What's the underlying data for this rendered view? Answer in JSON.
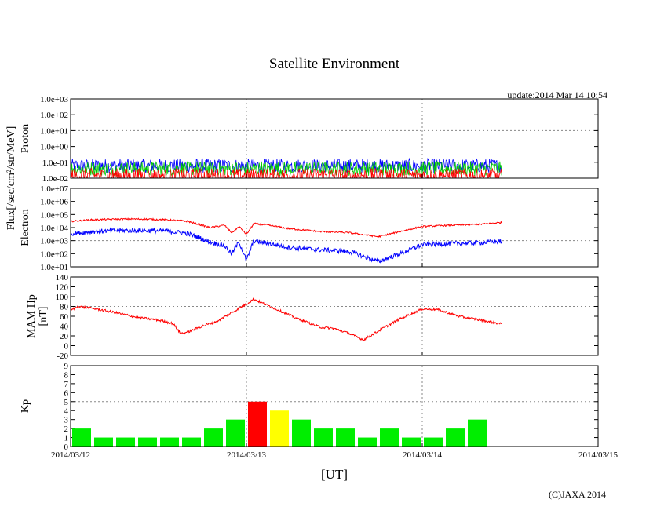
{
  "page": {
    "title": "Satellite Environment",
    "update": "update:2014 Mar 14 10:54",
    "copyright": "(C)JAXA 2014",
    "x_unit": "[UT]",
    "flux_label": "Flux[/sec/cm²/str/MeV]"
  },
  "chart_data": [
    {
      "name": "proton",
      "type": "line",
      "ylabel": "Proton",
      "yscale": "log",
      "ylim": [
        0.01,
        1000
      ],
      "yticks": [
        "1.0e-02",
        "1.0e-01",
        "1.0e+00",
        "1.0e+01",
        "1.0e+02",
        "1.0e+03"
      ],
      "grid_y_values": [
        10
      ],
      "xlim": [
        "2014-03-12T00:00",
        "2014-03-15T00:00"
      ],
      "series": [
        {
          "color": "#0000ff",
          "x": [
            "2014-03-12T00:00",
            "2014-03-12T12:00",
            "2014-03-13T00:00",
            "2014-03-13T12:00",
            "2014-03-14T00:00",
            "2014-03-14T10:54"
          ],
          "y": [
            0.06,
            0.06,
            0.06,
            0.06,
            0.06,
            0.06
          ]
        },
        {
          "color": "#00cc00",
          "x": [
            "2014-03-12T00:00",
            "2014-03-12T12:00",
            "2014-03-13T00:00",
            "2014-03-13T12:00",
            "2014-03-14T00:00",
            "2014-03-14T10:54"
          ],
          "y": [
            0.04,
            0.04,
            0.04,
            0.04,
            0.04,
            0.04
          ]
        },
        {
          "color": "#ff0000",
          "x": [
            "2014-03-12T00:00",
            "2014-03-12T12:00",
            "2014-03-13T00:00",
            "2014-03-13T12:00",
            "2014-03-14T00:00",
            "2014-03-14T10:54"
          ],
          "y": [
            0.015,
            0.015,
            0.015,
            0.015,
            0.015,
            0.015
          ]
        }
      ]
    },
    {
      "name": "electron",
      "type": "line",
      "ylabel": "Electron",
      "yscale": "log",
      "ylim": [
        10,
        10000000
      ],
      "yticks": [
        "1.0e+01",
        "1.0e+02",
        "1.0e+03",
        "1.0e+04",
        "1.0e+05",
        "1.0e+06",
        "1.0e+07"
      ],
      "grid_y_values": [
        1000
      ],
      "xlim": [
        "2014-03-12T00:00",
        "2014-03-15T00:00"
      ],
      "series": [
        {
          "color": "#ff0000",
          "x": [
            "2014-03-12T00:00",
            "2014-03-12T03:00",
            "2014-03-12T07:00",
            "2014-03-12T10:00",
            "2014-03-12T13:00",
            "2014-03-12T16:00",
            "2014-03-12T19:00",
            "2014-03-12T21:00",
            "2014-03-12T22:00",
            "2014-03-12T23:00",
            "2014-03-13T00:00",
            "2014-03-13T01:00",
            "2014-03-13T03:00",
            "2014-03-13T06:00",
            "2014-03-13T10:00",
            "2014-03-13T14:00",
            "2014-03-13T18:00",
            "2014-03-13T21:00",
            "2014-03-14T00:00",
            "2014-03-14T04:00",
            "2014-03-14T08:00",
            "2014-03-14T10:54"
          ],
          "y": [
            30000,
            40000,
            45000,
            45000,
            40000,
            30000,
            10000,
            15000,
            4000,
            12000,
            3000,
            20000,
            15000,
            8000,
            5000,
            4000,
            2000,
            5000,
            12000,
            15000,
            18000,
            25000
          ]
        },
        {
          "color": "#0000ff",
          "x": [
            "2014-03-12T00:00",
            "2014-03-12T03:00",
            "2014-03-12T07:00",
            "2014-03-12T10:00",
            "2014-03-12T13:00",
            "2014-03-12T16:00",
            "2014-03-12T19:00",
            "2014-03-12T21:00",
            "2014-03-12T22:00",
            "2014-03-12T23:00",
            "2014-03-13T00:00",
            "2014-03-13T01:00",
            "2014-03-13T03:00",
            "2014-03-13T06:00",
            "2014-03-13T10:00",
            "2014-03-13T14:00",
            "2014-03-13T18:00",
            "2014-03-13T21:00",
            "2014-03-14T00:00",
            "2014-03-14T04:00",
            "2014-03-14T08:00",
            "2014-03-14T10:54"
          ],
          "y": [
            3500,
            5000,
            6000,
            6000,
            5500,
            3500,
            800,
            400,
            100,
            800,
            30,
            1000,
            600,
            300,
            200,
            150,
            25,
            100,
            500,
            600,
            700,
            900
          ]
        }
      ]
    },
    {
      "name": "mam",
      "type": "line",
      "ylabel": "MAM Hp",
      "ylabel2": "[nT]",
      "ylim": [
        -20,
        140
      ],
      "yticks": [
        "-20",
        "0",
        "20",
        "40",
        "60",
        "80",
        "100",
        "120",
        "140"
      ],
      "grid_y_values": [
        80
      ],
      "xlim": [
        "2014-03-12T00:00",
        "2014-03-15T00:00"
      ],
      "series": [
        {
          "color": "#ff0000",
          "x": [
            "2014-03-12T00:00",
            "2014-03-12T01:00",
            "2014-03-12T03:00",
            "2014-03-12T06:00",
            "2014-03-12T09:00",
            "2014-03-12T12:00",
            "2014-03-12T14:00",
            "2014-03-12T15:00",
            "2014-03-12T16:00",
            "2014-03-12T18:00",
            "2014-03-12T20:00",
            "2014-03-13T00:00",
            "2014-03-13T01:00",
            "2014-03-13T02:00",
            "2014-03-13T04:00",
            "2014-03-13T07:00",
            "2014-03-13T10:00",
            "2014-03-13T12:00",
            "2014-03-13T14:00",
            "2014-03-13T15:00",
            "2014-03-13T16:00",
            "2014-03-13T18:00",
            "2014-03-13T21:00",
            "2014-03-14T00:00",
            "2014-03-14T02:00",
            "2014-03-14T05:00",
            "2014-03-14T08:00",
            "2014-03-14T10:54"
          ],
          "y": [
            72,
            80,
            76,
            68,
            58,
            52,
            45,
            25,
            28,
            40,
            50,
            85,
            95,
            88,
            75,
            55,
            38,
            35,
            25,
            18,
            12,
            30,
            55,
            75,
            74,
            60,
            52,
            44
          ]
        }
      ]
    },
    {
      "name": "kp",
      "type": "bar",
      "ylabel": "Kp",
      "ylim": [
        0,
        9
      ],
      "yticks": [
        "0",
        "1",
        "2",
        "3",
        "4",
        "5",
        "6",
        "7",
        "8",
        "9"
      ],
      "grid_y_values": [
        5
      ],
      "xlim": [
        "2014-03-12T00:00",
        "2014-03-15T00:00"
      ],
      "bar_hours": 3,
      "x": [
        "2014-03-12T00:00",
        "2014-03-12T03:00",
        "2014-03-12T06:00",
        "2014-03-12T09:00",
        "2014-03-12T12:00",
        "2014-03-12T15:00",
        "2014-03-12T18:00",
        "2014-03-12T21:00",
        "2014-03-13T00:00",
        "2014-03-13T03:00",
        "2014-03-13T06:00",
        "2014-03-13T09:00",
        "2014-03-13T12:00",
        "2014-03-13T15:00",
        "2014-03-13T18:00",
        "2014-03-13T21:00",
        "2014-03-14T00:00",
        "2014-03-14T03:00",
        "2014-03-14T06:00"
      ],
      "values": [
        2,
        1,
        1,
        1,
        1,
        1,
        2,
        3,
        5,
        4,
        3,
        2,
        2,
        1,
        2,
        1,
        1,
        2,
        3
      ],
      "colors": {
        "normal": "#00ee00",
        "kp4": "#ffff00",
        "kp5": "#ff0000"
      }
    }
  ],
  "x_axis": {
    "ticks": [
      "2014-03-12T00:00",
      "2014-03-13T00:00",
      "2014-03-14T00:00",
      "2014-03-15T00:00"
    ],
    "labels": [
      "2014/03/12",
      "2014/03/13",
      "2014/03/14",
      "2014/03/15"
    ]
  }
}
